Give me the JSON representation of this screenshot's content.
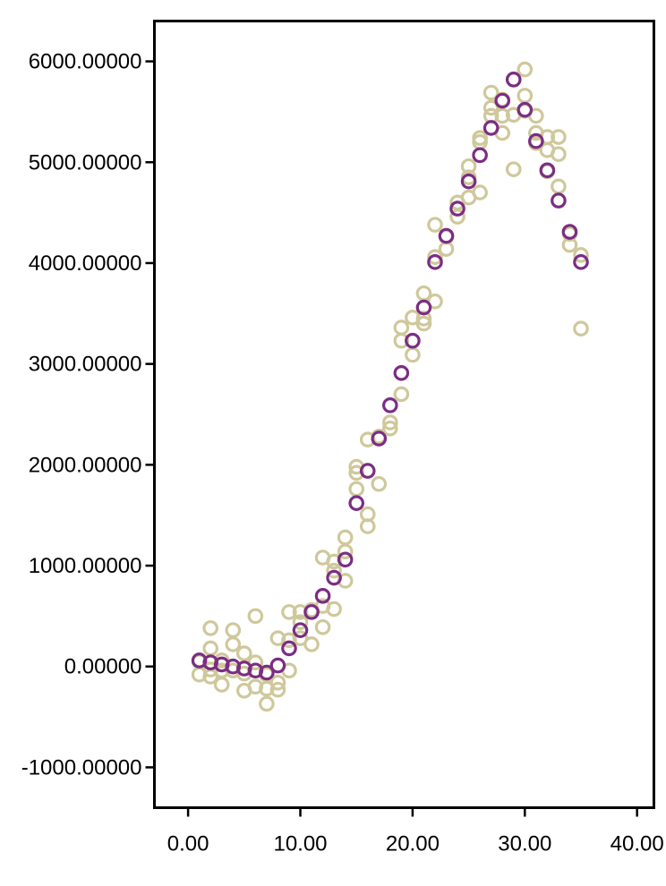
{
  "chart_data": {
    "type": "scatter",
    "title": "",
    "xlabel": "",
    "ylabel": "",
    "xlim": [
      -3,
      41.5
    ],
    "ylim": [
      -1400,
      6400
    ],
    "grid": false,
    "legend": "none",
    "x_ticks": [
      {
        "value": 0,
        "label": "0.00"
      },
      {
        "value": 10,
        "label": "10.00"
      },
      {
        "value": 20,
        "label": "20.00"
      },
      {
        "value": 30,
        "label": "30.00"
      },
      {
        "value": 40,
        "label": "40.00"
      }
    ],
    "y_ticks": [
      {
        "value": -1000,
        "label": "-1000.00000"
      },
      {
        "value": 0,
        "label": "0.00000"
      },
      {
        "value": 1000,
        "label": "1000.00000"
      },
      {
        "value": 2000,
        "label": "2000.00000"
      },
      {
        "value": 3000,
        "label": "3000.00000"
      },
      {
        "value": 4000,
        "label": "4000.00000"
      },
      {
        "value": 5000,
        "label": "5000.00000"
      },
      {
        "value": 6000,
        "label": "6000.00000"
      }
    ],
    "series": [
      {
        "color": "#cfc89b",
        "marker": "open-circle",
        "points": [
          [
            1,
            -80
          ],
          [
            1,
            50
          ],
          [
            2,
            380
          ],
          [
            2,
            180
          ],
          [
            2,
            -30
          ],
          [
            2,
            -100
          ],
          [
            3,
            60
          ],
          [
            3,
            -180
          ],
          [
            3,
            -40
          ],
          [
            4,
            360
          ],
          [
            4,
            220
          ],
          [
            4,
            -40
          ],
          [
            5,
            130
          ],
          [
            5,
            -70
          ],
          [
            5,
            -240
          ],
          [
            6,
            500
          ],
          [
            6,
            40
          ],
          [
            6,
            -200
          ],
          [
            7,
            -80
          ],
          [
            7,
            -220
          ],
          [
            7,
            -370
          ],
          [
            8,
            280
          ],
          [
            8,
            -230
          ],
          [
            8,
            -160
          ],
          [
            9,
            540
          ],
          [
            9,
            260
          ],
          [
            9,
            -40
          ],
          [
            10,
            540
          ],
          [
            10,
            280
          ],
          [
            10,
            440
          ],
          [
            11,
            560
          ],
          [
            11,
            220
          ],
          [
            12,
            1080
          ],
          [
            12,
            600
          ],
          [
            12,
            390
          ],
          [
            13,
            1040
          ],
          [
            13,
            950
          ],
          [
            13,
            570
          ],
          [
            14,
            1280
          ],
          [
            14,
            1140
          ],
          [
            14,
            850
          ],
          [
            15,
            1980
          ],
          [
            15,
            1920
          ],
          [
            15,
            1760
          ],
          [
            16,
            2250
          ],
          [
            16,
            1510
          ],
          [
            16,
            1390
          ],
          [
            17,
            2280
          ],
          [
            17,
            1810
          ],
          [
            18,
            2420
          ],
          [
            18,
            2360
          ],
          [
            19,
            3360
          ],
          [
            19,
            3230
          ],
          [
            19,
            2700
          ],
          [
            20,
            3460
          ],
          [
            20,
            3090
          ],
          [
            21,
            3700
          ],
          [
            21,
            3400
          ],
          [
            21,
            3450
          ],
          [
            22,
            4380
          ],
          [
            22,
            4060
          ],
          [
            22,
            3620
          ],
          [
            23,
            4260
          ],
          [
            23,
            4140
          ],
          [
            24,
            4600
          ],
          [
            24,
            4460
          ],
          [
            25,
            4960
          ],
          [
            25,
            4850
          ],
          [
            25,
            4650
          ],
          [
            26,
            5240
          ],
          [
            26,
            5200
          ],
          [
            26,
            4700
          ],
          [
            27,
            5690
          ],
          [
            27,
            5540
          ],
          [
            27,
            5460
          ],
          [
            28,
            5620
          ],
          [
            28,
            5460
          ],
          [
            28,
            5290
          ],
          [
            29,
            5820
          ],
          [
            29,
            5470
          ],
          [
            29,
            4930
          ],
          [
            30,
            5920
          ],
          [
            30,
            5660
          ],
          [
            30,
            5510
          ],
          [
            31,
            5460
          ],
          [
            31,
            5290
          ],
          [
            31,
            5190
          ],
          [
            32,
            5250
          ],
          [
            32,
            5120
          ],
          [
            32,
            4910
          ],
          [
            33,
            5250
          ],
          [
            33,
            5080
          ],
          [
            33,
            4760
          ],
          [
            34,
            4290
          ],
          [
            34,
            4180
          ],
          [
            35,
            4080
          ],
          [
            35,
            3350
          ]
        ]
      },
      {
        "color": "#7b2d83",
        "marker": "open-circle",
        "points": [
          [
            1,
            60
          ],
          [
            2,
            40
          ],
          [
            3,
            20
          ],
          [
            4,
            0
          ],
          [
            5,
            -20
          ],
          [
            6,
            -40
          ],
          [
            7,
            -60
          ],
          [
            8,
            10
          ],
          [
            9,
            180
          ],
          [
            10,
            360
          ],
          [
            11,
            540
          ],
          [
            12,
            700
          ],
          [
            13,
            880
          ],
          [
            14,
            1060
          ],
          [
            15,
            1620
          ],
          [
            16,
            1940
          ],
          [
            17,
            2260
          ],
          [
            18,
            2590
          ],
          [
            19,
            2910
          ],
          [
            20,
            3230
          ],
          [
            21,
            3560
          ],
          [
            22,
            4010
          ],
          [
            23,
            4270
          ],
          [
            24,
            4540
          ],
          [
            25,
            4810
          ],
          [
            26,
            5070
          ],
          [
            27,
            5340
          ],
          [
            28,
            5610
          ],
          [
            29,
            5820
          ],
          [
            30,
            5520
          ],
          [
            31,
            5210
          ],
          [
            32,
            4920
          ],
          [
            33,
            4620
          ],
          [
            34,
            4310
          ],
          [
            35,
            4010
          ]
        ]
      }
    ]
  }
}
